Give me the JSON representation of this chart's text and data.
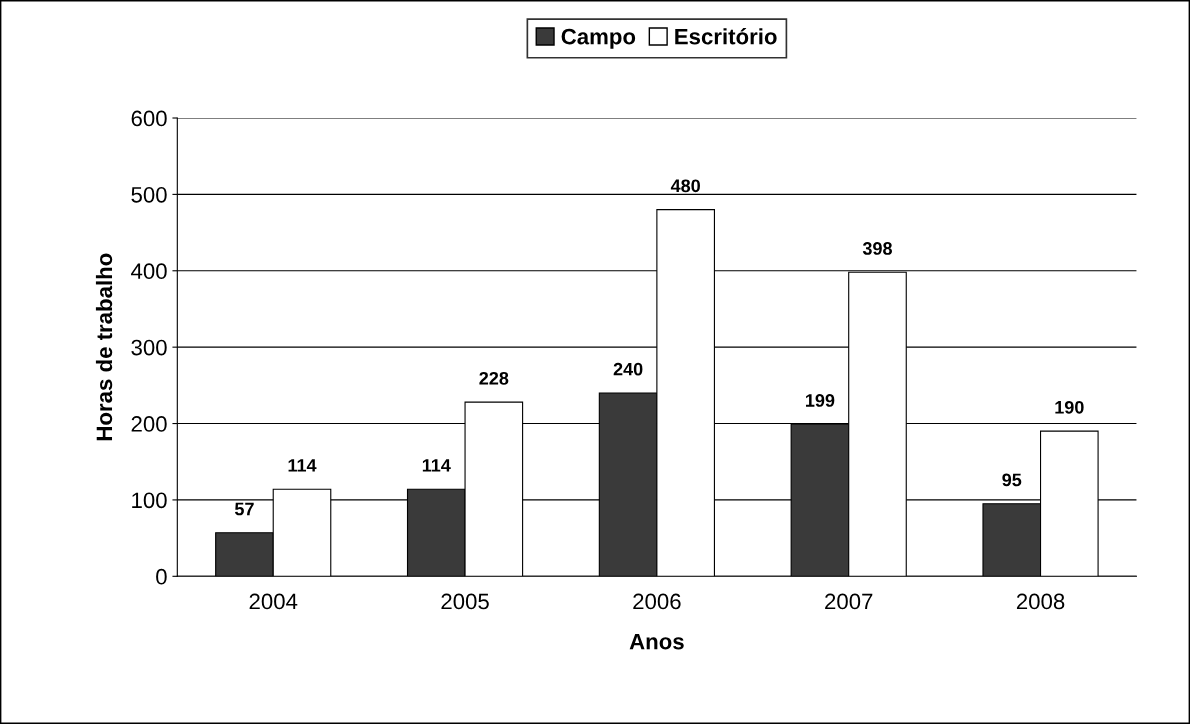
{
  "chart_data": {
    "type": "bar",
    "xlabel": "Anos",
    "ylabel": "Horas de trabalho",
    "categories": [
      "2004",
      "2005",
      "2006",
      "2007",
      "2008"
    ],
    "series": [
      {
        "name": "Campo",
        "color": "#3a3a3a",
        "values": [
          57,
          114,
          240,
          199,
          95
        ]
      },
      {
        "name": "Escritório",
        "color": "#ffffff",
        "values": [
          114,
          228,
          480,
          398,
          190
        ]
      }
    ],
    "ylim": [
      0,
      600
    ],
    "yticks": [
      0,
      100,
      200,
      300,
      400,
      500,
      600
    ],
    "grid": "y",
    "legend": "top",
    "data_labels": true
  }
}
